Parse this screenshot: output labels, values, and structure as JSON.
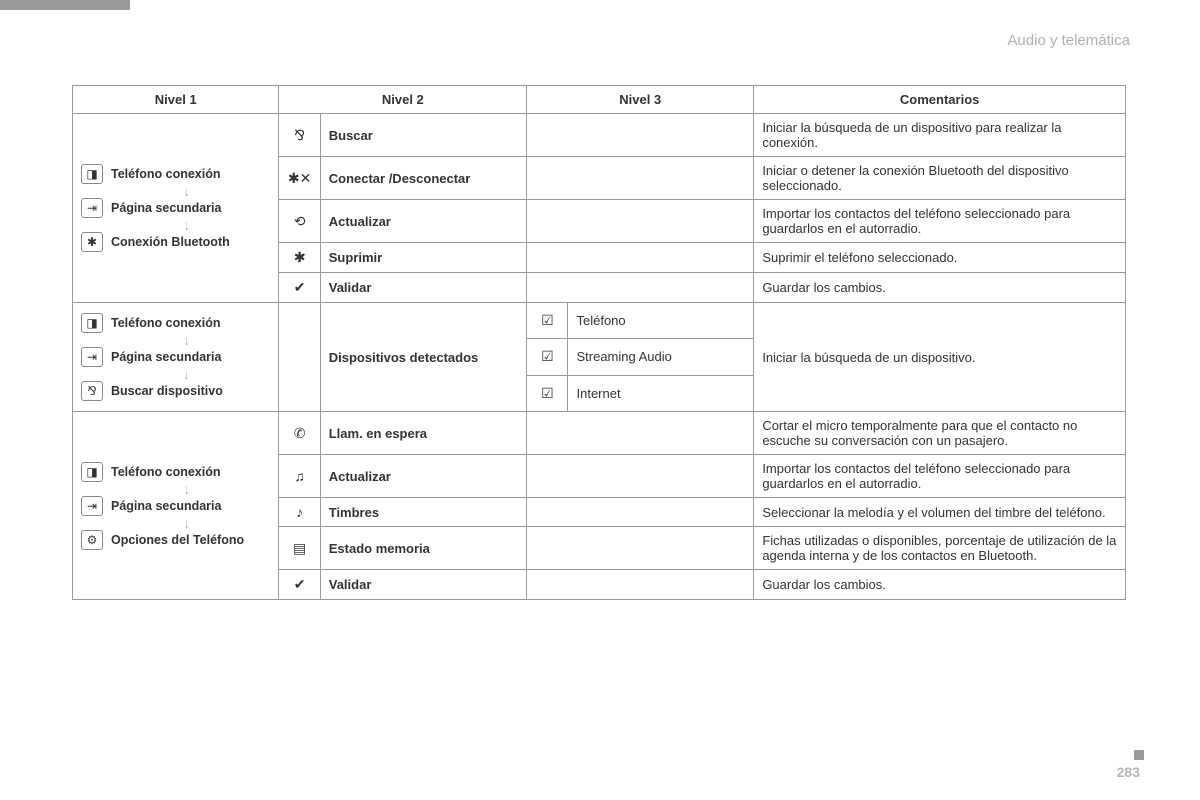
{
  "section_title": "Audio y telemática",
  "page_number": "283",
  "headers": {
    "c1": "Nivel 1",
    "c2": "Nivel 2",
    "c3": "Nivel 3",
    "c4": "Comentarios"
  },
  "nav1": {
    "r1": "Teléfono conexión",
    "r2": "Página secundaria",
    "r3": "Conexión Bluetooth"
  },
  "nav2": {
    "r1": "Teléfono conexión",
    "r2": "Página secundaria",
    "r3": "Buscar dispositivo"
  },
  "nav3": {
    "r1": "Teléfono conexión",
    "r2": "Página secundaria",
    "r3": "Opciones del Teléfono"
  },
  "block1": {
    "row1": {
      "l2": "Buscar",
      "c": "Iniciar la búsqueda de un dispositivo para realizar la conexión."
    },
    "row2": {
      "l2": "Conectar /Desconectar",
      "c": "Iniciar o detener la conexión Bluetooth del dispositivo seleccionado."
    },
    "row3": {
      "l2": "Actualizar",
      "c": "Importar los contactos del teléfono seleccionado para guardarlos en el autorradio."
    },
    "row4": {
      "l2": "Suprimir",
      "c": "Suprimir el teléfono seleccionado."
    },
    "row5": {
      "l2": "Validar",
      "c": "Guardar los cambios."
    }
  },
  "block2": {
    "l2": "Dispositivos detectados",
    "r1": "Teléfono",
    "r2": "Streaming Audio",
    "r3": "Internet",
    "c": "Iniciar la búsqueda de un dispositivo."
  },
  "block3": {
    "row1": {
      "l2": "Llam. en espera",
      "c": "Cortar el micro temporalmente para que el contacto no escuche su conversación con un pasajero."
    },
    "row2": {
      "l2": "Actualizar",
      "c": "Importar los contactos del teléfono seleccionado para guardarlos en el autorradio."
    },
    "row3": {
      "l2": "Timbres",
      "c": "Seleccionar la melodía y el volumen del timbre del teléfono."
    },
    "row4": {
      "l2": "Estado memoria",
      "c": "Fichas utilizadas o disponibles, porcentaje de utilización de la agenda interna y de los contactos en Bluetooth."
    },
    "row5": {
      "l2": "Validar",
      "c": "Guardar los cambios."
    }
  },
  "icons": {
    "phone_tab": "◨",
    "page": "⇥",
    "bluetooth": "✱",
    "search_bt": "⅋",
    "bt_x": "✱✕",
    "refresh": "⟲",
    "delete_bt": "✱̷",
    "check": "✔",
    "checkbox": "☑",
    "phone_wait": "✆",
    "headset": "♫",
    "ringtone": "♪",
    "memory": "▤",
    "settings": "⚙"
  }
}
